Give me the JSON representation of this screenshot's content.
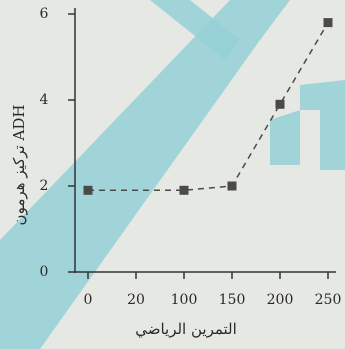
{
  "chart_data": {
    "type": "line",
    "x_label": "التمرين الرياضي",
    "y_label": "تركيز هرمون ADH",
    "x": [
      0,
      100,
      150,
      200,
      250
    ],
    "series": [
      {
        "color": "#4a4a4a",
        "values": [
          1.9,
          1.9,
          2.0,
          3.9,
          5.8
        ]
      }
    ],
    "xticks": [
      0,
      20,
      100,
      150,
      200,
      250
    ],
    "ylim": [
      0,
      6
    ],
    "yticks": [
      0,
      2,
      4,
      6
    ]
  }
}
